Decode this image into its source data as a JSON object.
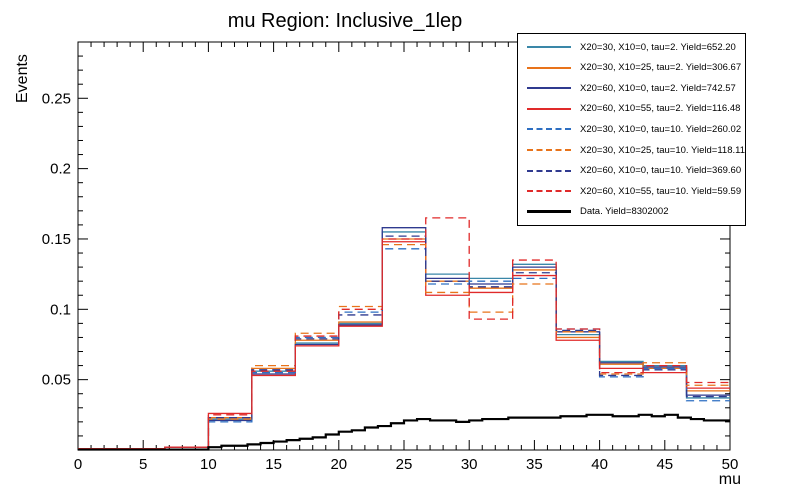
{
  "chart_data": {
    "type": "line",
    "style": "step-histogram",
    "title": "mu Region: Inclusive_1lep",
    "xlabel": "mu",
    "ylabel": "Events",
    "xlim": [
      0,
      50
    ],
    "ylim": [
      0,
      0.29
    ],
    "grid": false,
    "legend_position": "top-right",
    "x_major_ticks": [
      0,
      5,
      10,
      15,
      20,
      25,
      30,
      35,
      40,
      45,
      50
    ],
    "x_tick_labels": [
      "0",
      "5",
      "10",
      "15",
      "20",
      "25",
      "30",
      "35",
      "40",
      "45",
      "50"
    ],
    "x_minor_step": 1,
    "y_major_ticks": [
      0.05,
      0.1,
      0.15,
      0.2,
      0.25
    ],
    "y_tick_labels": [
      "0.05",
      "0.1",
      "0.15",
      "0.2",
      "0.25"
    ],
    "y_minor_step": 0.01,
    "signal_bin_edges": [
      0,
      3.333,
      6.667,
      10,
      13.333,
      16.667,
      20,
      23.333,
      26.667,
      30,
      33.333,
      36.667,
      40,
      43.333,
      46.667,
      50
    ],
    "series": [
      {
        "id": "s1",
        "name": "X20=30, X10=0, tau=2. Yield=652.20",
        "color": "#3a87a8",
        "dash": false,
        "values": [
          0.001,
          0.001,
          0.002,
          0.022,
          0.056,
          0.076,
          0.09,
          0.155,
          0.125,
          0.122,
          0.132,
          0.082,
          0.063,
          0.06,
          0.037
        ]
      },
      {
        "id": "s2",
        "name": "X20=30, X10=25, tau=2. Yield=306.67",
        "color": "#e8731a",
        "dash": false,
        "values": [
          0.001,
          0.001,
          0.002,
          0.023,
          0.058,
          0.078,
          0.091,
          0.15,
          0.12,
          0.115,
          0.128,
          0.08,
          0.061,
          0.058,
          0.042
        ]
      },
      {
        "id": "s3",
        "name": "X20=60, X10=0, tau=2. Yield=742.57",
        "color": "#2f3a8f",
        "dash": false,
        "values": [
          0.001,
          0.001,
          0.002,
          0.021,
          0.054,
          0.075,
          0.089,
          0.158,
          0.122,
          0.118,
          0.13,
          0.084,
          0.062,
          0.059,
          0.039
        ]
      },
      {
        "id": "s4",
        "name": "X20=60, X10=55, tau=2. Yield=116.48",
        "color": "#e02a2a",
        "dash": false,
        "values": [
          0.001,
          0.001,
          0.002,
          0.026,
          0.053,
          0.074,
          0.088,
          0.148,
          0.11,
          0.112,
          0.124,
          0.078,
          0.058,
          0.055,
          0.044
        ]
      },
      {
        "id": "s5",
        "name": "X20=30, X10=0, tau=10. Yield=260.02",
        "color": "#2d6fc2",
        "dash": true,
        "values": [
          0.001,
          0.001,
          0.002,
          0.02,
          0.055,
          0.08,
          0.098,
          0.143,
          0.118,
          0.12,
          0.122,
          0.086,
          0.052,
          0.058,
          0.035
        ]
      },
      {
        "id": "s6",
        "name": "X20=30, X10=25, tau=10. Yield=118.11",
        "color": "#e8731a",
        "dash": true,
        "values": [
          0.001,
          0.001,
          0.002,
          0.022,
          0.06,
          0.083,
          0.102,
          0.146,
          0.112,
          0.098,
          0.118,
          0.084,
          0.054,
          0.062,
          0.046
        ]
      },
      {
        "id": "s7",
        "name": "X20=60, X10=0, tau=10. Yield=369.60",
        "color": "#2f3a8f",
        "dash": true,
        "values": [
          0.001,
          0.001,
          0.002,
          0.023,
          0.057,
          0.079,
          0.096,
          0.152,
          0.12,
          0.116,
          0.126,
          0.085,
          0.053,
          0.057,
          0.038
        ]
      },
      {
        "id": "s8",
        "name": "X20=60, X10=55, tau=10. Yield=59.59",
        "color": "#e02a2a",
        "dash": true,
        "values": [
          0.001,
          0.001,
          0.002,
          0.025,
          0.056,
          0.081,
          0.1,
          0.15,
          0.165,
          0.093,
          0.135,
          0.086,
          0.055,
          0.06,
          0.048
        ]
      }
    ],
    "data_series": {
      "id": "data",
      "name": "Data. Yield=8302002",
      "color": "#000000",
      "bin_width": 1,
      "values": [
        0.0003,
        0.0003,
        0.0003,
        0.0003,
        0.0003,
        0.0003,
        0.0003,
        0.0003,
        0.0003,
        0.0003,
        0.002,
        0.003,
        0.003,
        0.004,
        0.005,
        0.006,
        0.007,
        0.008,
        0.009,
        0.011,
        0.013,
        0.014,
        0.016,
        0.017,
        0.019,
        0.021,
        0.022,
        0.021,
        0.021,
        0.02,
        0.021,
        0.022,
        0.022,
        0.023,
        0.023,
        0.023,
        0.023,
        0.024,
        0.024,
        0.025,
        0.025,
        0.024,
        0.024,
        0.025,
        0.024,
        0.025,
        0.023,
        0.022,
        0.021,
        0.021
      ]
    }
  }
}
